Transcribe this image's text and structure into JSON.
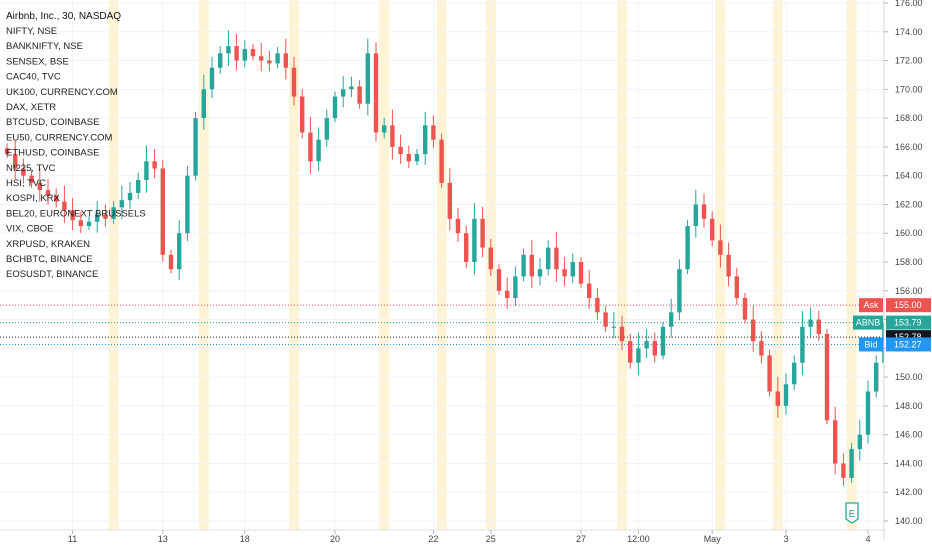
{
  "title": "Airbnb, Inc., 30, NASDAQ",
  "compare_symbols": [
    "NIFTY, NSE",
    "BANKNIFTY, NSE",
    "SENSEX, BSE",
    "CAC40, TVC",
    "UK100, CURRENCY.COM",
    "DAX, XETR",
    "BTCUSD, COINBASE",
    "EU50, CURRENCY.COM",
    "ETHUSD, COINBASE",
    "NI225, TVC",
    "HSI, TVC",
    "KOSPI, KRX",
    "BEL20, EURONEXT BRUSSELS",
    "VIX, CBOE",
    "XRPUSD, KRAKEN",
    "BCHBTC, BINANCE",
    "EOSUSDT, BINANCE"
  ],
  "price_tags": {
    "ask": {
      "label": "Ask",
      "value": "155.00",
      "price": 155.0,
      "color": "#ef5350"
    },
    "last": {
      "label": "ABNB",
      "value": "153.79",
      "price": 153.79,
      "color": "#26a69a"
    },
    "mid": {
      "label": "",
      "value": "152.78",
      "price": 152.78,
      "color": "#131722"
    },
    "bid": {
      "label": "Bid",
      "value": "152.27",
      "price": 152.27,
      "color": "#2196f3"
    }
  },
  "colors": {
    "up": "#26a69a",
    "down": "#ef5350",
    "session": "#fff3d6"
  },
  "logo_glyph": "E",
  "chart_data": {
    "type": "candlestick",
    "interval": "30",
    "ylim": [
      140,
      176
    ],
    "y_ticks": [
      "140.00",
      "142.00",
      "144.00",
      "146.00",
      "148.00",
      "150.00",
      "152.00",
      "154.00",
      "156.00",
      "158.00",
      "160.00",
      "162.00",
      "164.00",
      "166.00",
      "168.00",
      "170.00",
      "172.00",
      "174.00",
      "176.00"
    ],
    "x_ticks": [
      {
        "label": "11",
        "bar": 8
      },
      {
        "label": "13",
        "bar": 19
      },
      {
        "label": "18",
        "bar": 29
      },
      {
        "label": "20",
        "bar": 40
      },
      {
        "label": "22",
        "bar": 52
      },
      {
        "label": "25",
        "bar": 59
      },
      {
        "label": "27",
        "bar": 70
      },
      {
        "label": "12:00",
        "bar": 77
      },
      {
        "label": "May",
        "bar": 86
      },
      {
        "label": "3",
        "bar": 95
      },
      {
        "label": "4",
        "bar": 105
      }
    ],
    "session_bars": [
      13,
      24,
      35,
      46,
      53,
      59,
      75,
      87,
      94,
      103
    ],
    "close": [
      165.5,
      164.5,
      164.0,
      163.5,
      163.0,
      162.6,
      162.2,
      161.6,
      160.9,
      160.5,
      160.8,
      161.3,
      161.0,
      161.8,
      162.3,
      162.8,
      163.7,
      165.0,
      164.5,
      158.5,
      157.5,
      160.0,
      164.0,
      168.0,
      170.0,
      171.5,
      172.5,
      173.0,
      172.0,
      172.8,
      172.3,
      172.0,
      171.8,
      172.5,
      171.5,
      169.5,
      167.0,
      165.0,
      166.5,
      168.0,
      169.5,
      170.0,
      170.2,
      169.0,
      172.5,
      167.0,
      167.5,
      166.0,
      165.5,
      165.0,
      165.5,
      167.5,
      166.5,
      163.5,
      161.0,
      160.0,
      158.0,
      161.0,
      159.0,
      157.5,
      156.0,
      155.5,
      157.0,
      158.5,
      157.0,
      157.5,
      159.0,
      157.5,
      157.0,
      158.0,
      156.5,
      155.5,
      154.5,
      153.5,
      153.5,
      152.5,
      151.0,
      152.0,
      152.5,
      151.5,
      153.5,
      154.5,
      157.5,
      160.5,
      162.0,
      161.0,
      159.5,
      158.5,
      157.0,
      155.5,
      154.0,
      152.5,
      151.5,
      149.0,
      148.0,
      149.5,
      151.0,
      153.5,
      154.0,
      153.0,
      147.0,
      144.0,
      143.0,
      145.0,
      146.0,
      149.0,
      151.0,
      153.8
    ]
  }
}
